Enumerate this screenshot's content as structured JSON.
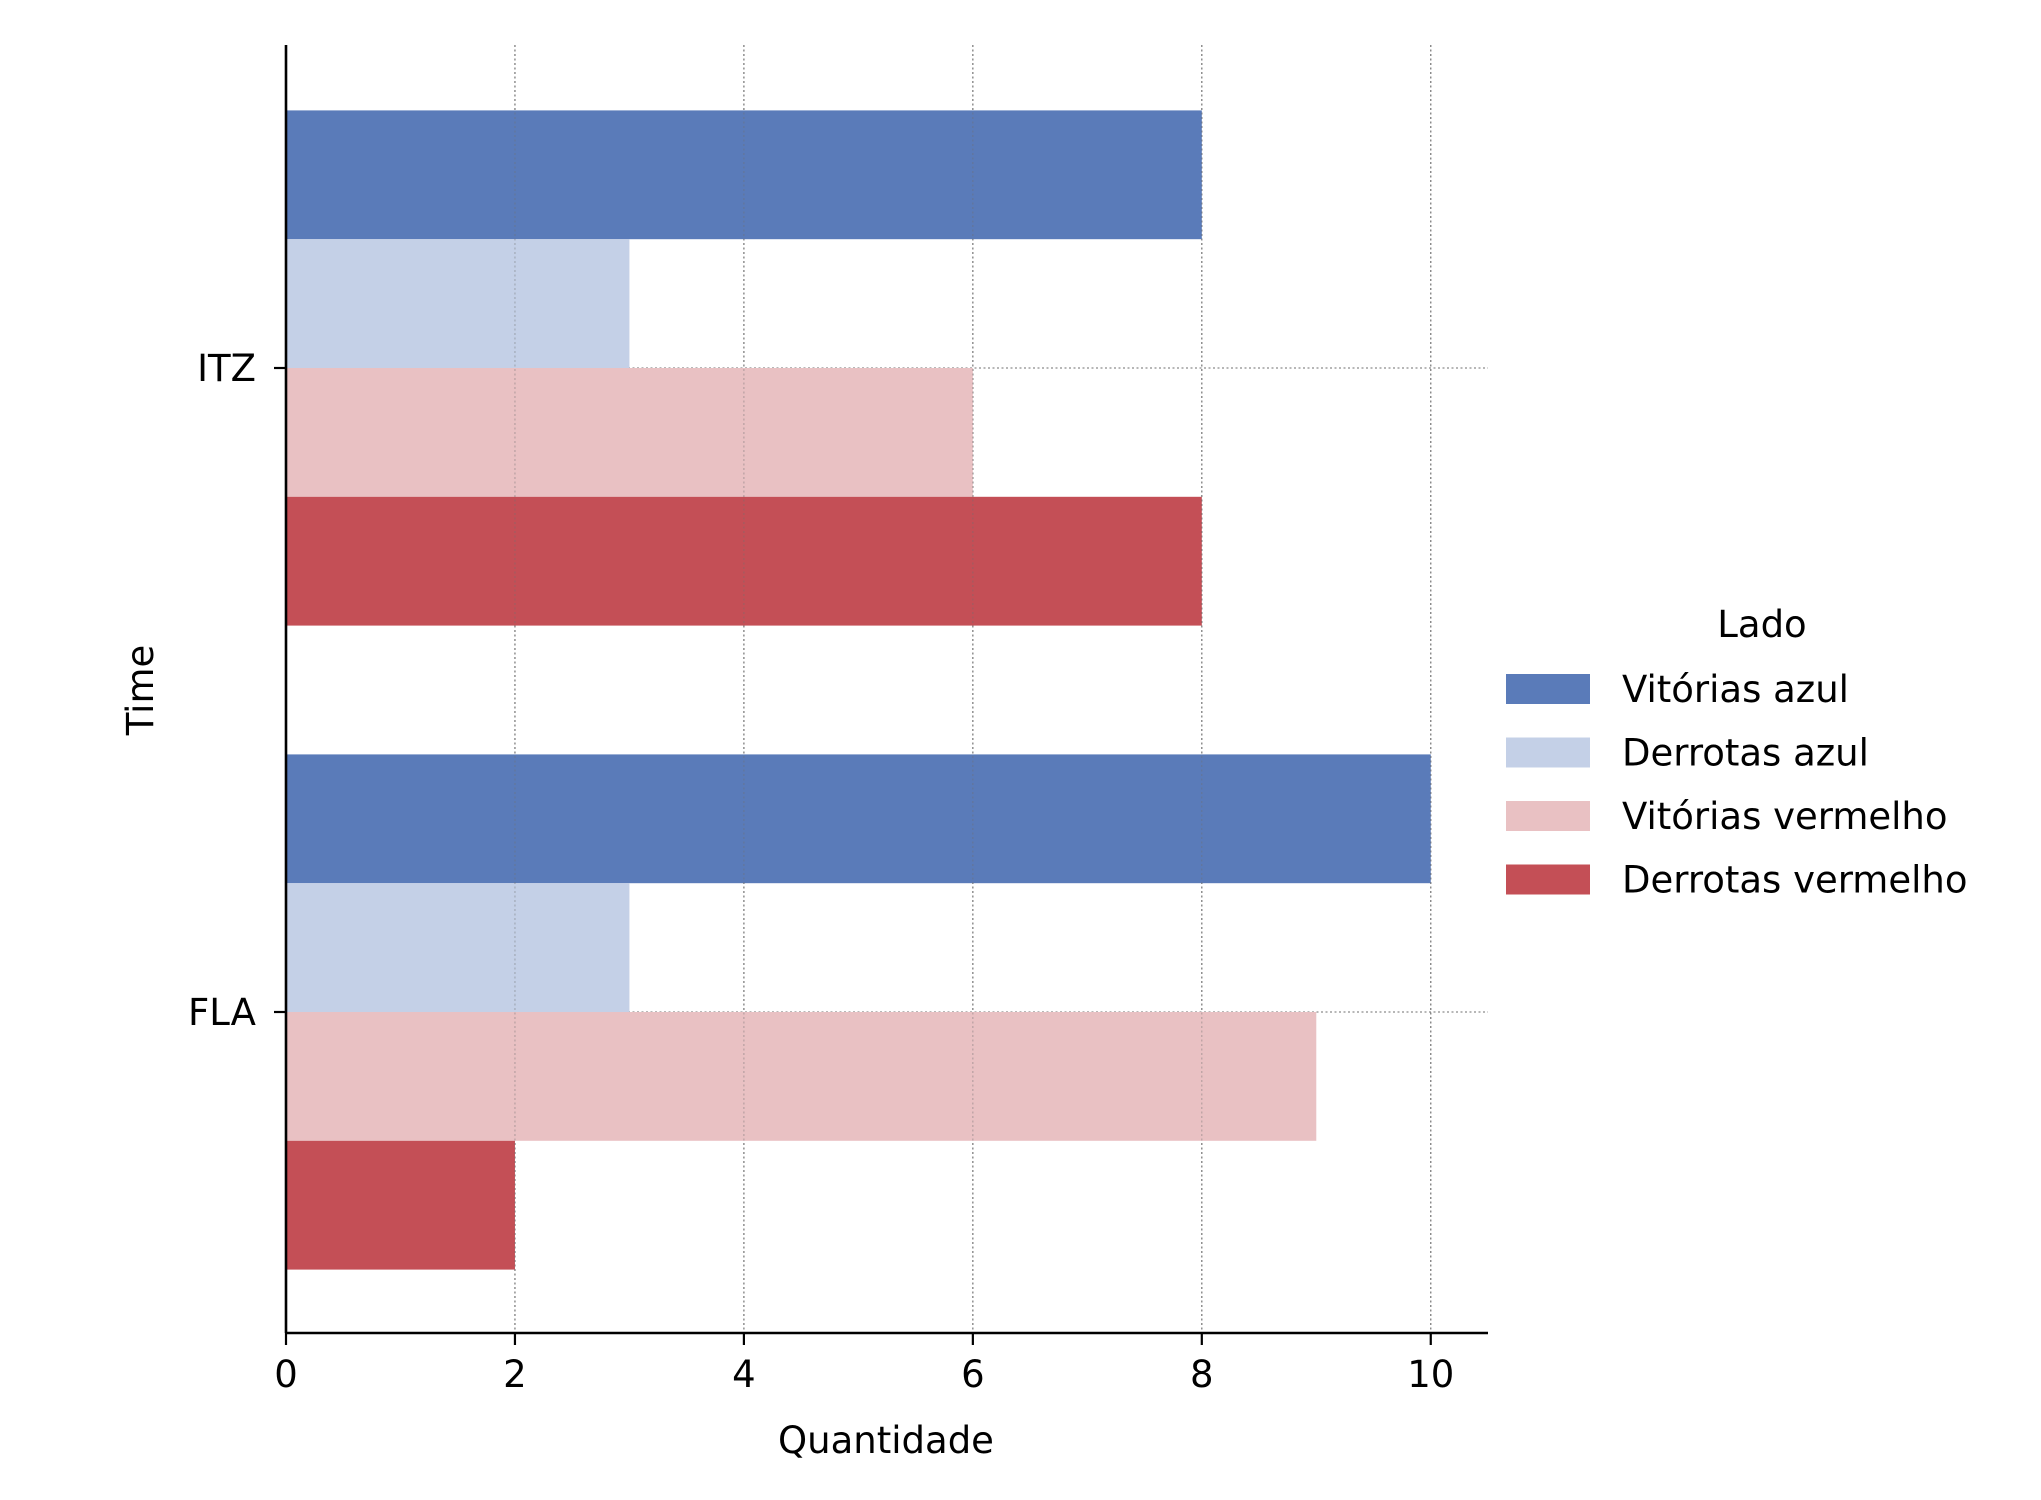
{
  "chart_data": {
    "type": "bar",
    "orientation": "horizontal",
    "title": "",
    "xlabel": "Quantidade",
    "ylabel": "Time",
    "categories": [
      "ITZ",
      "FLA"
    ],
    "series": [
      {
        "name": "Vitórias azul",
        "values": [
          8,
          10
        ],
        "color": "#5a7bb9"
      },
      {
        "name": "Derrotas azul",
        "values": [
          3,
          3
        ],
        "color": "#c4d0e7"
      },
      {
        "name": "Vitórias vermelho",
        "values": [
          6,
          9
        ],
        "color": "#e9c1c3"
      },
      {
        "name": "Derrotas vermelho",
        "values": [
          8,
          2
        ],
        "color": "#c44f56"
      }
    ],
    "xlim": [
      0,
      10.5
    ],
    "xticks": [
      0,
      2,
      4,
      6,
      8,
      10
    ],
    "xtick_labels": [
      "0",
      "2",
      "4",
      "6",
      "8",
      "10"
    ],
    "grid": true,
    "grid_style": "dotted",
    "legend": {
      "title": "Lado",
      "placement": "center-right-outside"
    }
  }
}
